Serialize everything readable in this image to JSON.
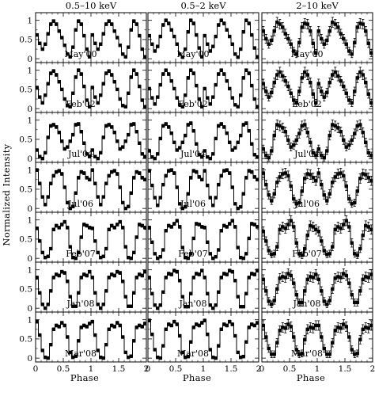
{
  "chart_data": {
    "type": "line",
    "ylabel": "Normalized Intensity",
    "xlabel": "Phase",
    "xlim": [
      0,
      2
    ],
    "ylim": [
      -0.1,
      1.2
    ],
    "x_ticks": [
      "0",
      "0.5",
      "1",
      "1.5",
      "2"
    ],
    "y_ticks": [
      "0",
      "0.5",
      "1"
    ],
    "x_tick_values": [
      0,
      0.5,
      1,
      1.5,
      2
    ],
    "y_tick_values": [
      0,
      0.5,
      1
    ],
    "bins_per_cycle": 20,
    "columns": [
      {
        "title": "0.5–10 keV",
        "error_scale": 0.03
      },
      {
        "title": "0.5–2 keV",
        "error_scale": 0.03
      },
      {
        "title": "2–10 keV",
        "error_scale": 0.1
      }
    ],
    "rows": [
      {
        "epoch": "May'00",
        "series": [
          [
            0.62,
            0.4,
            0.25,
            0.38,
            0.65,
            0.9,
            0.98,
            0.9,
            0.72,
            0.55,
            0.35,
            0.12,
            0.05,
            0.3,
            0.75,
            0.98,
            0.9,
            0.6,
            0.25,
            0.05
          ],
          [
            0.6,
            0.38,
            0.2,
            0.32,
            0.58,
            0.88,
            1.0,
            0.92,
            0.75,
            0.58,
            0.38,
            0.12,
            0.04,
            0.25,
            0.7,
            1.0,
            0.92,
            0.62,
            0.28,
            0.05
          ],
          [
            0.72,
            0.52,
            0.38,
            0.48,
            0.72,
            0.95,
            0.9,
            0.82,
            0.65,
            0.52,
            0.38,
            0.2,
            0.12,
            0.42,
            0.82,
            0.92,
            0.9,
            0.72,
            0.4,
            0.15
          ]
        ]
      },
      {
        "epoch": "Feb'02",
        "series": [
          [
            0.55,
            0.3,
            0.15,
            0.35,
            0.65,
            0.92,
            0.98,
            0.88,
            0.7,
            0.5,
            0.25,
            0.08,
            0.05,
            0.4,
            0.82,
            1.0,
            0.9,
            0.58,
            0.22,
            0.05
          ],
          [
            0.52,
            0.28,
            0.12,
            0.3,
            0.62,
            0.9,
            1.0,
            0.9,
            0.72,
            0.52,
            0.28,
            0.1,
            0.05,
            0.35,
            0.8,
            1.0,
            0.92,
            0.6,
            0.25,
            0.05
          ],
          [
            0.65,
            0.45,
            0.3,
            0.42,
            0.68,
            0.88,
            0.95,
            0.85,
            0.72,
            0.58,
            0.4,
            0.22,
            0.15,
            0.45,
            0.8,
            0.95,
            0.88,
            0.68,
            0.38,
            0.15
          ]
        ]
      },
      {
        "epoch": "Jul'04",
        "series": [
          [
            0.22,
            0.05,
            0.0,
            0.15,
            0.55,
            0.85,
            0.88,
            0.82,
            0.68,
            0.45,
            0.25,
            0.3,
            0.45,
            0.62,
            0.88,
            0.9,
            0.7,
            0.4,
            0.12,
            0.05
          ],
          [
            0.2,
            0.04,
            0.0,
            0.12,
            0.52,
            0.85,
            0.9,
            0.82,
            0.66,
            0.42,
            0.22,
            0.28,
            0.42,
            0.6,
            0.88,
            0.92,
            0.72,
            0.38,
            0.1,
            0.04
          ],
          [
            0.25,
            0.08,
            0.02,
            0.2,
            0.6,
            0.88,
            0.85,
            0.8,
            0.7,
            0.48,
            0.3,
            0.35,
            0.48,
            0.65,
            0.85,
            0.88,
            0.68,
            0.42,
            0.15,
            0.08
          ]
        ]
      },
      {
        "epoch": "Jul'06",
        "series": [
          [
            1.0,
            0.65,
            0.3,
            0.1,
            0.3,
            0.65,
            0.85,
            0.95,
            0.98,
            0.9,
            0.55,
            0.15,
            0.0,
            0.05,
            0.4,
            0.8,
            0.95,
            0.92,
            0.8,
            0.75
          ],
          [
            0.98,
            0.6,
            0.28,
            0.08,
            0.28,
            0.62,
            0.85,
            0.98,
            1.0,
            0.92,
            0.55,
            0.12,
            0.0,
            0.04,
            0.38,
            0.8,
            0.98,
            0.95,
            0.82,
            0.75
          ],
          [
            0.92,
            0.62,
            0.35,
            0.2,
            0.38,
            0.68,
            0.82,
            0.9,
            0.92,
            0.85,
            0.58,
            0.25,
            0.12,
            0.15,
            0.45,
            0.78,
            0.9,
            0.88,
            0.8,
            0.72
          ]
        ]
      },
      {
        "epoch": "Feb'07",
        "series": [
          [
            0.78,
            0.45,
            0.15,
            0.02,
            0.05,
            0.25,
            0.75,
            0.85,
            0.8,
            0.88,
            0.95,
            0.8,
            0.3,
            0.02,
            0.0,
            0.15,
            0.55,
            0.88,
            0.85,
            0.8
          ],
          [
            0.8,
            0.42,
            0.12,
            0.0,
            0.04,
            0.22,
            0.72,
            0.85,
            0.82,
            0.9,
            0.98,
            0.82,
            0.28,
            0.02,
            0.0,
            0.12,
            0.52,
            0.9,
            0.88,
            0.82
          ],
          [
            0.7,
            0.45,
            0.2,
            0.1,
            0.12,
            0.3,
            0.75,
            0.82,
            0.78,
            0.88,
            0.98,
            0.82,
            0.4,
            0.12,
            0.08,
            0.25,
            0.6,
            0.85,
            0.82,
            0.75
          ]
        ]
      },
      {
        "epoch": "Jan'08",
        "series": [
          [
            0.8,
            0.4,
            0.1,
            0.0,
            0.1,
            0.45,
            0.8,
            0.88,
            0.85,
            0.95,
            0.92,
            0.7,
            0.3,
            0.05,
            0.05,
            0.4,
            0.8,
            0.88,
            0.85,
            0.95
          ],
          [
            0.8,
            0.38,
            0.08,
            0.0,
            0.08,
            0.42,
            0.8,
            0.9,
            0.88,
            0.98,
            0.95,
            0.72,
            0.3,
            0.04,
            0.04,
            0.38,
            0.8,
            0.9,
            0.88,
            0.98
          ],
          [
            0.75,
            0.45,
            0.18,
            0.1,
            0.2,
            0.5,
            0.78,
            0.82,
            0.8,
            0.9,
            0.85,
            0.65,
            0.35,
            0.15,
            0.15,
            0.45,
            0.75,
            0.82,
            0.8,
            0.88
          ]
        ]
      },
      {
        "epoch": "Mar'08",
        "series": [
          [
            0.95,
            0.6,
            0.2,
            0.02,
            0.0,
            0.35,
            0.75,
            0.85,
            0.82,
            0.92,
            0.85,
            0.55,
            0.15,
            0.02,
            0.05,
            0.45,
            0.8,
            0.85,
            0.82,
            0.9
          ],
          [
            0.98,
            0.62,
            0.22,
            0.02,
            0.0,
            0.32,
            0.75,
            0.88,
            0.85,
            0.95,
            0.88,
            0.58,
            0.15,
            0.02,
            0.04,
            0.42,
            0.8,
            0.88,
            0.85,
            0.92
          ],
          [
            0.85,
            0.55,
            0.25,
            0.1,
            0.1,
            0.4,
            0.72,
            0.8,
            0.78,
            0.88,
            0.82,
            0.55,
            0.22,
            0.1,
            0.12,
            0.48,
            0.75,
            0.8,
            0.78,
            0.85
          ]
        ]
      }
    ]
  }
}
